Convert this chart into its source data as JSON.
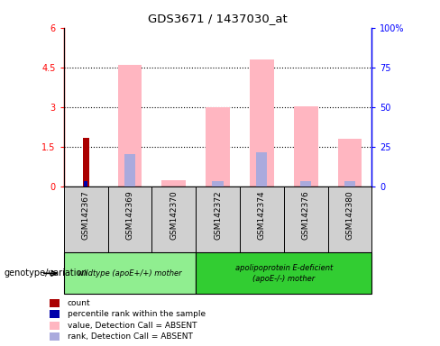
{
  "title": "GDS3671 / 1437030_at",
  "samples": [
    "GSM142367",
    "GSM142369",
    "GSM142370",
    "GSM142372",
    "GSM142374",
    "GSM142376",
    "GSM142380"
  ],
  "group1_label": "wildtype (apoE+/+) mother",
  "group2_label": "apolipoprotein E-deficient\n(apoE-/-) mother",
  "group1_color": "#90EE90",
  "group2_color": "#32CD32",
  "group1_count": 3,
  "group2_count": 4,
  "value_absent": [
    0.0,
    4.6,
    0.25,
    3.0,
    4.8,
    3.05,
    1.8
  ],
  "rank_absent_left": [
    0.0,
    1.25,
    0.0,
    0.2,
    1.3,
    0.2,
    0.2
  ],
  "count": [
    1.85,
    0.0,
    0.0,
    0.0,
    0.0,
    0.0,
    0.0
  ],
  "percentile_rank_left": [
    0.22,
    0.0,
    0.0,
    0.0,
    0.0,
    0.0,
    0.0
  ],
  "ylim_left": [
    0,
    6
  ],
  "ylim_right": [
    0,
    100
  ],
  "yticks_left": [
    0,
    1.5,
    3.0,
    4.5,
    6.0
  ],
  "ytick_labels_left": [
    "0",
    "1.5",
    "3",
    "4.5",
    "6"
  ],
  "yticks_right_vals": [
    0,
    25,
    50,
    75,
    100
  ],
  "ytick_labels_right": [
    "0",
    "25",
    "50",
    "75",
    "100%"
  ],
  "color_value_absent": "#FFB6C1",
  "color_rank_absent": "#AAAADD",
  "color_count": "#AA0000",
  "color_percentile": "#0000AA",
  "group_label": "genotype/variation",
  "legend_items": [
    {
      "color": "#AA0000",
      "label": "count"
    },
    {
      "color": "#0000AA",
      "label": "percentile rank within the sample"
    },
    {
      "color": "#FFB6C1",
      "label": "value, Detection Call = ABSENT"
    },
    {
      "color": "#AAAADD",
      "label": "rank, Detection Call = ABSENT"
    }
  ],
  "plot_bg": "#FFFFFF",
  "fig_bg": "#FFFFFF",
  "sample_box_color": "#D0D0D0",
  "grid_lines": [
    1.5,
    3.0,
    4.5
  ]
}
